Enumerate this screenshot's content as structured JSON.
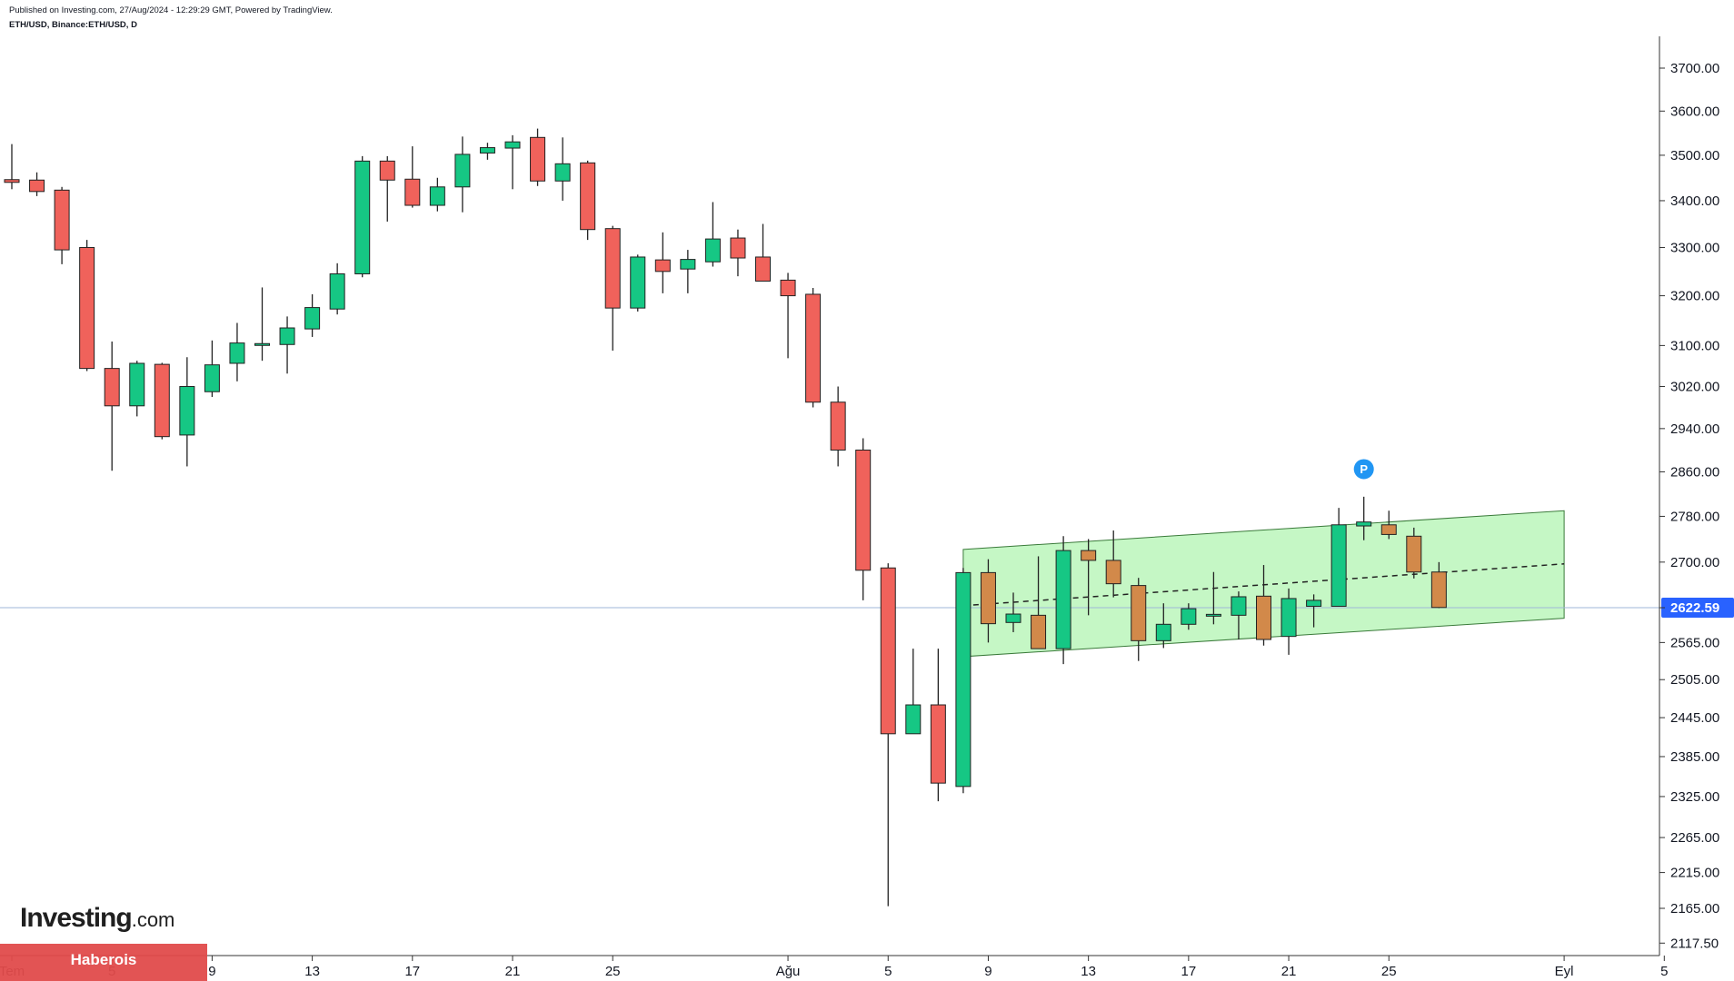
{
  "header": {
    "published": "Published on Investing.com, 27/Aug/2024 - 12:29:29 GMT, Powered by TradingView.",
    "symbol": "ETH/USD, Binance:ETH/USD, D"
  },
  "branding": {
    "logo_main": "Investing",
    "logo_domain": ".com",
    "banner": "Haberois"
  },
  "colors": {
    "up": "#16c784",
    "down": "#f0625b",
    "channel_up": "#d2894a",
    "channel_fill": "#c5f7c5",
    "price_line": "#9fb7d8",
    "price_label_bg": "#2962ff",
    "marker": "#2196f3"
  },
  "chart_data": {
    "type": "candlestick",
    "symbol": "ETH/USD",
    "interval": "D",
    "ylim": [
      2090,
      3760
    ],
    "y_ticks": [
      3700,
      3600,
      3500,
      3400,
      3300,
      3200,
      3100,
      3020,
      2940,
      2860,
      2780,
      2700,
      2622.59,
      2565,
      2505,
      2445,
      2385,
      2325,
      2265,
      2215,
      2165,
      2117.5
    ],
    "y_tick_labels": [
      "3700.00",
      "3600.00",
      "3500.00",
      "3400.00",
      "3300.00",
      "3200.00",
      "3100.00",
      "3020.00",
      "2940.00",
      "2860.00",
      "2780.00",
      "2700.00",
      "2622.59",
      "2565.00",
      "2505.00",
      "2445.00",
      "2385.00",
      "2325.00",
      "2265.00",
      "2215.00",
      "2165.00",
      "2117.50"
    ],
    "x_ticks": [
      {
        "label": "Tem",
        "index": 0
      },
      {
        "label": "5",
        "index": 4
      },
      {
        "label": "9",
        "index": 8
      },
      {
        "label": "13",
        "index": 12
      },
      {
        "label": "17",
        "index": 16
      },
      {
        "label": "21",
        "index": 20
      },
      {
        "label": "25",
        "index": 24
      },
      {
        "label": "Ağu",
        "index": 31
      },
      {
        "label": "5",
        "index": 35
      },
      {
        "label": "9",
        "index": 39
      },
      {
        "label": "13",
        "index": 43
      },
      {
        "label": "17",
        "index": 47
      },
      {
        "label": "21",
        "index": 51
      },
      {
        "label": "25",
        "index": 55
      },
      {
        "label": "Eyl",
        "index": 62
      },
      {
        "label": "5",
        "index": 66
      }
    ],
    "current_price": 2622.59,
    "current_price_label": "2622.59",
    "candles": [
      {
        "o": 3446,
        "h": 3525,
        "l": 3425,
        "c": 3440
      },
      {
        "o": 3445,
        "h": 3462,
        "l": 3410,
        "c": 3420
      },
      {
        "o": 3423,
        "h": 3430,
        "l": 3265,
        "c": 3295
      },
      {
        "o": 3300,
        "h": 3316,
        "l": 3050,
        "c": 3055
      },
      {
        "o": 3055,
        "h": 3108,
        "l": 2862,
        "c": 2983
      },
      {
        "o": 2983,
        "h": 3070,
        "l": 2963,
        "c": 3065
      },
      {
        "o": 3063,
        "h": 3066,
        "l": 2920,
        "c": 2925
      },
      {
        "o": 2928,
        "h": 3077,
        "l": 2870,
        "c": 3020
      },
      {
        "o": 3010,
        "h": 3110,
        "l": 3000,
        "c": 3062
      },
      {
        "o": 3065,
        "h": 3145,
        "l": 3030,
        "c": 3105
      },
      {
        "o": 3100,
        "h": 3217,
        "l": 3070,
        "c": 3102
      },
      {
        "o": 3102,
        "h": 3158,
        "l": 3045,
        "c": 3135
      },
      {
        "o": 3133,
        "h": 3203,
        "l": 3117,
        "c": 3176
      },
      {
        "o": 3173,
        "h": 3267,
        "l": 3162,
        "c": 3245
      },
      {
        "o": 3245,
        "h": 3498,
        "l": 3238,
        "c": 3487
      },
      {
        "o": 3487,
        "h": 3498,
        "l": 3355,
        "c": 3445
      },
      {
        "o": 3447,
        "h": 3520,
        "l": 3385,
        "c": 3390
      },
      {
        "o": 3390,
        "h": 3450,
        "l": 3377,
        "c": 3430
      },
      {
        "o": 3430,
        "h": 3542,
        "l": 3375,
        "c": 3502
      },
      {
        "o": 3505,
        "h": 3528,
        "l": 3490,
        "c": 3517
      },
      {
        "o": 3516,
        "h": 3545,
        "l": 3425,
        "c": 3530
      },
      {
        "o": 3540,
        "h": 3560,
        "l": 3432,
        "c": 3443
      },
      {
        "o": 3443,
        "h": 3540,
        "l": 3400,
        "c": 3481
      },
      {
        "o": 3483,
        "h": 3488,
        "l": 3316,
        "c": 3338
      },
      {
        "o": 3340,
        "h": 3346,
        "l": 3090,
        "c": 3175
      },
      {
        "o": 3175,
        "h": 3285,
        "l": 3168,
        "c": 3280
      },
      {
        "o": 3274,
        "h": 3332,
        "l": 3205,
        "c": 3250
      },
      {
        "o": 3255,
        "h": 3295,
        "l": 3205,
        "c": 3275
      },
      {
        "o": 3270,
        "h": 3397,
        "l": 3260,
        "c": 3318
      },
      {
        "o": 3320,
        "h": 3338,
        "l": 3240,
        "c": 3278
      },
      {
        "o": 3280,
        "h": 3350,
        "l": 3230,
        "c": 3230
      },
      {
        "o": 3232,
        "h": 3247,
        "l": 3075,
        "c": 3200
      },
      {
        "o": 3203,
        "h": 3216,
        "l": 2980,
        "c": 2990
      },
      {
        "o": 2990,
        "h": 3020,
        "l": 2870,
        "c": 2900
      },
      {
        "o": 2900,
        "h": 2922,
        "l": 2635,
        "c": 2686
      },
      {
        "o": 2690,
        "h": 2698,
        "l": 2168,
        "c": 2420
      },
      {
        "o": 2420,
        "h": 2555,
        "l": 2420,
        "c": 2465
      },
      {
        "o": 2465,
        "h": 2555,
        "l": 2318,
        "c": 2345
      },
      {
        "o": 2340,
        "h": 2690,
        "l": 2330,
        "c": 2682
      },
      {
        "o": 2682,
        "h": 2705,
        "l": 2565,
        "c": 2596
      },
      {
        "o": 2598,
        "h": 2648,
        "l": 2582,
        "c": 2612
      },
      {
        "o": 2610,
        "h": 2710,
        "l": 2560,
        "c": 2555
      },
      {
        "o": 2555,
        "h": 2745,
        "l": 2530,
        "c": 2720
      },
      {
        "o": 2720,
        "h": 2740,
        "l": 2610,
        "c": 2703
      },
      {
        "o": 2703,
        "h": 2755,
        "l": 2640,
        "c": 2663
      },
      {
        "o": 2660,
        "h": 2673,
        "l": 2535,
        "c": 2568
      },
      {
        "o": 2568,
        "h": 2630,
        "l": 2556,
        "c": 2595
      },
      {
        "o": 2595,
        "h": 2630,
        "l": 2586,
        "c": 2621
      },
      {
        "o": 2610,
        "h": 2683,
        "l": 2595,
        "c": 2610
      },
      {
        "o": 2610,
        "h": 2650,
        "l": 2570,
        "c": 2641
      },
      {
        "o": 2642,
        "h": 2695,
        "l": 2560,
        "c": 2570
      },
      {
        "o": 2575,
        "h": 2655,
        "l": 2545,
        "c": 2638
      },
      {
        "o": 2625,
        "h": 2645,
        "l": 2590,
        "c": 2635
      },
      {
        "o": 2625,
        "h": 2795,
        "l": 2625,
        "c": 2765
      },
      {
        "o": 2763,
        "h": 2815,
        "l": 2738,
        "c": 2770
      },
      {
        "o": 2765,
        "h": 2790,
        "l": 2740,
        "c": 2748
      },
      {
        "o": 2745,
        "h": 2760,
        "l": 2672,
        "c": 2683
      },
      {
        "o": 2683,
        "h": 2700,
        "l": 2622,
        "c": 2623
      }
    ],
    "channel": {
      "start_index": 38,
      "end_index": 62,
      "upper": [
        2722,
        2790
      ],
      "lower": [
        2542,
        2605
      ],
      "mid": [
        2626,
        2697
      ],
      "highlight_from_index": 39,
      "highlight_to_index": 57
    },
    "marker": {
      "index": 54,
      "price": 2865,
      "label": "P"
    }
  }
}
